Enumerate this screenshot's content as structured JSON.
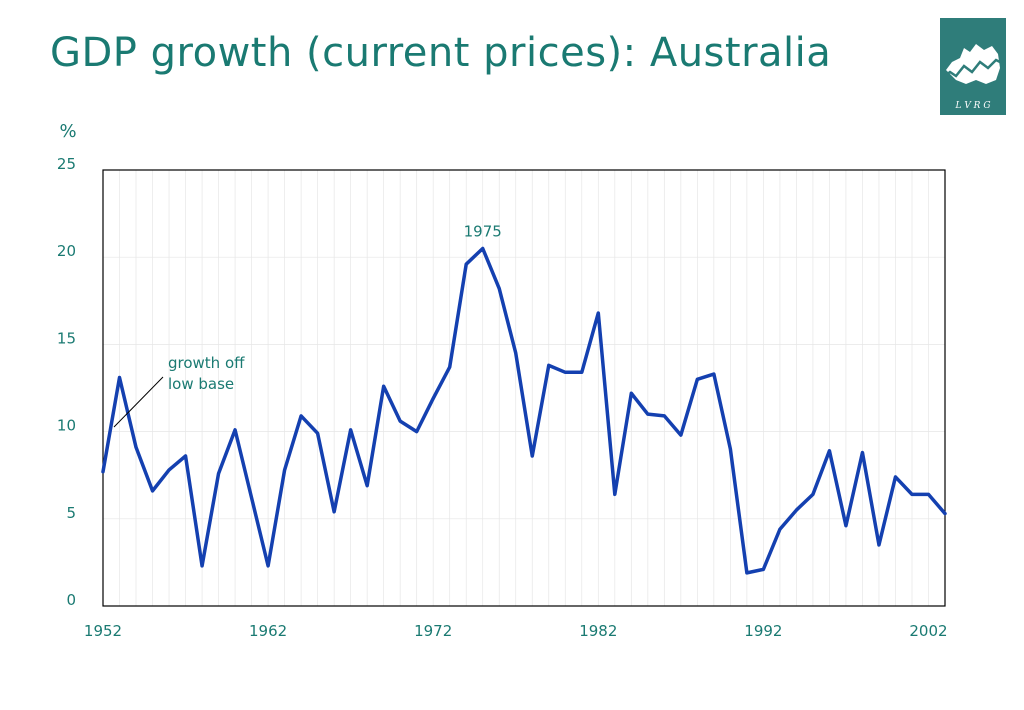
{
  "page": {
    "title": "GDP growth (current prices): Australia",
    "logo_text": "L V R G"
  },
  "colors": {
    "title": "#1a7a72",
    "series": "#1440b0",
    "logo": "#2f7d7a",
    "grid": "#e6e6e6"
  },
  "chart_data": {
    "type": "line",
    "title": "GDP growth (current prices): Australia",
    "ylabel": "%",
    "xlabel": "",
    "xlim": [
      1952,
      2003
    ],
    "ylim": [
      0,
      25
    ],
    "grid": true,
    "y_ticks": [
      0,
      5,
      10,
      15,
      20,
      25
    ],
    "x_ticks": [
      1952,
      1962,
      1972,
      1982,
      1992,
      2002
    ],
    "x": [
      1952,
      1953,
      1954,
      1955,
      1956,
      1957,
      1958,
      1959,
      1960,
      1961,
      1962,
      1963,
      1964,
      1965,
      1966,
      1967,
      1968,
      1969,
      1970,
      1971,
      1972,
      1973,
      1974,
      1975,
      1976,
      1977,
      1978,
      1979,
      1980,
      1981,
      1982,
      1983,
      1984,
      1985,
      1986,
      1987,
      1988,
      1989,
      1990,
      1991,
      1992,
      1993,
      1994,
      1995,
      1996,
      1997,
      1998,
      1999,
      2000,
      2001,
      2002,
      2003
    ],
    "series": [
      {
        "values": [
          7.7,
          13.1,
          9.1,
          6.6,
          7.8,
          8.6,
          2.3,
          7.6,
          10.1,
          6.2,
          2.3,
          7.8,
          10.9,
          9.9,
          5.4,
          10.1,
          6.9,
          12.6,
          10.6,
          10.0,
          11.9,
          13.7,
          19.6,
          20.5,
          18.2,
          14.5,
          8.6,
          13.8,
          13.4,
          13.4,
          16.8,
          6.4,
          12.2,
          11.0,
          10.9,
          9.8,
          13.0,
          13.3,
          9.0,
          1.9,
          2.1,
          4.4,
          5.5,
          6.4,
          8.9,
          4.6,
          8.8,
          3.5,
          7.4,
          6.4,
          6.4,
          5.3
        ]
      }
    ],
    "annotations": [
      {
        "text": "1975",
        "x": 1975,
        "y": 20.5
      },
      {
        "lines": [
          "growth off",
          "low base"
        ],
        "x": 1953,
        "y": 13.1
      }
    ]
  }
}
